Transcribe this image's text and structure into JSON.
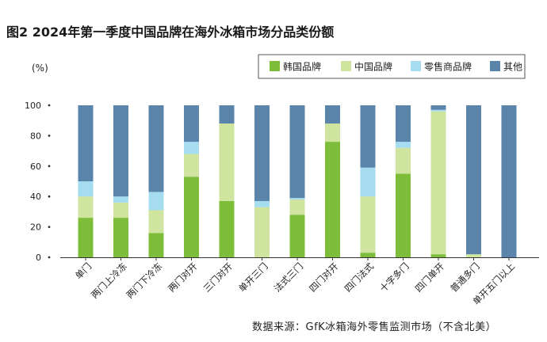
{
  "figure": {
    "title": "图2 2024年第一季度中国品牌在海外冰箱市场分品类份额",
    "source": "数据来源：GfK冰箱海外零售监测市场（不含北美）"
  },
  "chart_data": {
    "type": "bar",
    "stacked": true,
    "ylabel": "(%)",
    "ylim": [
      0,
      100
    ],
    "yticks": [
      0,
      20,
      40,
      60,
      80,
      100
    ],
    "legend_position": "top-right",
    "categories": [
      "单门",
      "两门上冷冻",
      "两门下冷冻",
      "两门对开",
      "三门对开",
      "单开三门",
      "法式三门",
      "四门对开",
      "四门法式",
      "十字多门",
      "四门单开",
      "普通多门",
      "单开五门以上"
    ],
    "series": [
      {
        "name": "韩国品牌",
        "color": "#7dbd3a",
        "values": [
          26,
          26,
          16,
          53,
          37,
          0,
          28,
          76,
          3,
          55,
          2,
          0,
          0
        ]
      },
      {
        "name": "中国品牌",
        "color": "#cfe49e",
        "values": [
          14,
          10,
          15,
          15,
          51,
          33,
          10,
          12,
          37,
          17,
          94,
          2,
          0
        ]
      },
      {
        "name": "零售商品牌",
        "color": "#a6dcf0",
        "values": [
          10,
          4,
          12,
          8,
          0,
          4,
          1,
          0,
          19,
          4,
          1,
          0,
          0
        ]
      },
      {
        "name": "其他",
        "color": "#5a84aa",
        "values": [
          50,
          60,
          57,
          24,
          12,
          63,
          61,
          12,
          41,
          24,
          3,
          98,
          100
        ]
      }
    ]
  }
}
